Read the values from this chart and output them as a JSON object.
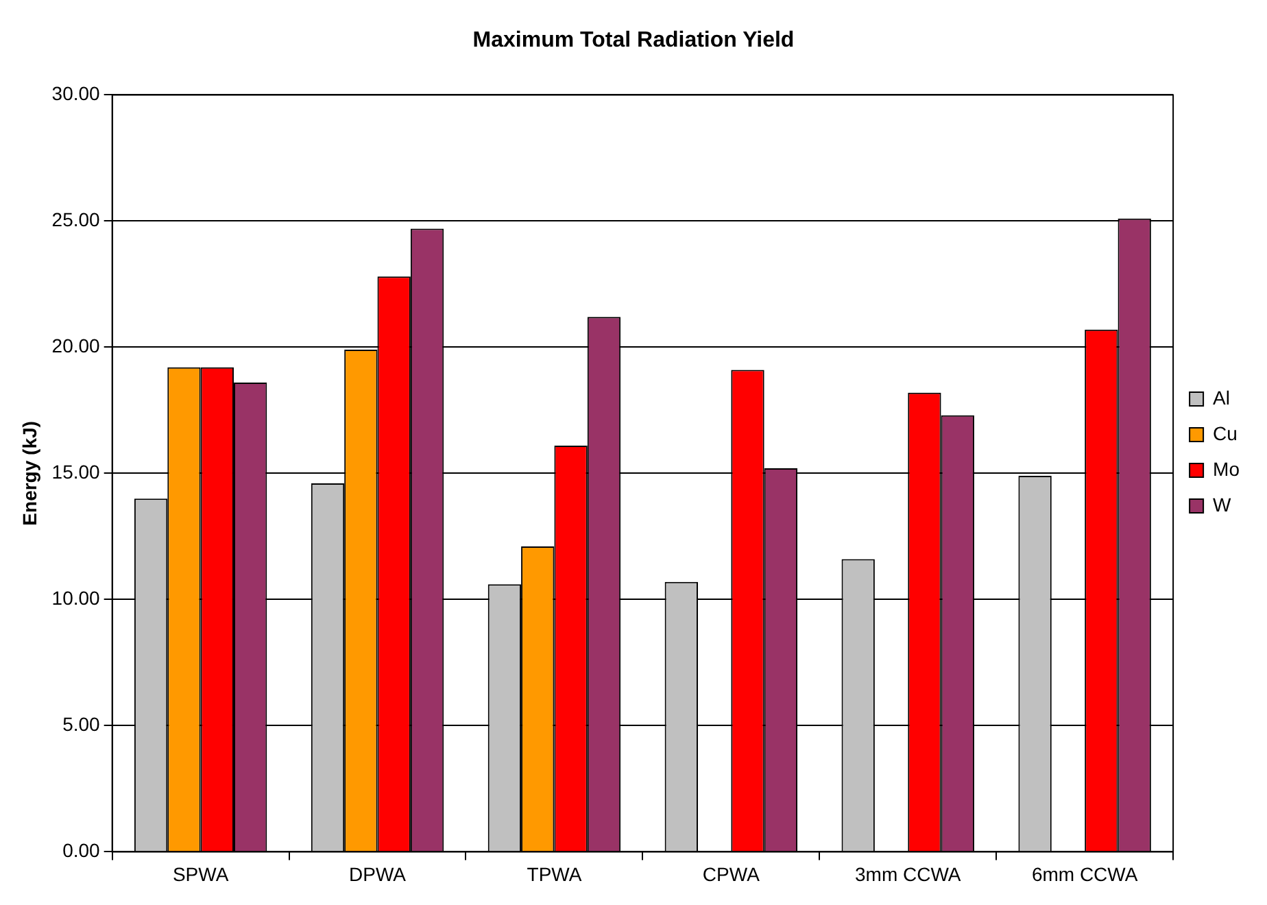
{
  "chart_data": {
    "type": "bar",
    "title": "Maximum Total Radiation Yield",
    "ylabel": "Energy (kJ)",
    "categories": [
      "SPWA",
      "DPWA",
      "TPWA",
      "CPWA",
      "3mm CCWA",
      "6mm CCWA"
    ],
    "series": [
      {
        "name": "Al",
        "color": "#c0c0c0",
        "values": [
          14.0,
          14.6,
          10.6,
          10.7,
          11.6,
          14.9
        ]
      },
      {
        "name": "Cu",
        "color": "#ff9900",
        "values": [
          19.2,
          19.9,
          12.1,
          null,
          null,
          null
        ]
      },
      {
        "name": "Mo",
        "color": "#ff0000",
        "values": [
          19.2,
          22.8,
          16.1,
          19.1,
          18.2,
          20.7
        ]
      },
      {
        "name": "W",
        "color": "#993366",
        "values": [
          18.6,
          24.7,
          21.2,
          15.2,
          17.3,
          25.1
        ]
      }
    ],
    "ylim": [
      0,
      30
    ],
    "yticks": [
      {
        "value": 0,
        "label": "0.00"
      },
      {
        "value": 5,
        "label": "5.00"
      },
      {
        "value": 10,
        "label": "10.00"
      },
      {
        "value": 15,
        "label": "15.00"
      },
      {
        "value": 20,
        "label": "20.00"
      },
      {
        "value": 25,
        "label": "25.00"
      },
      {
        "value": 30,
        "label": "30.00"
      }
    ],
    "grid": "y",
    "legend": "right"
  }
}
